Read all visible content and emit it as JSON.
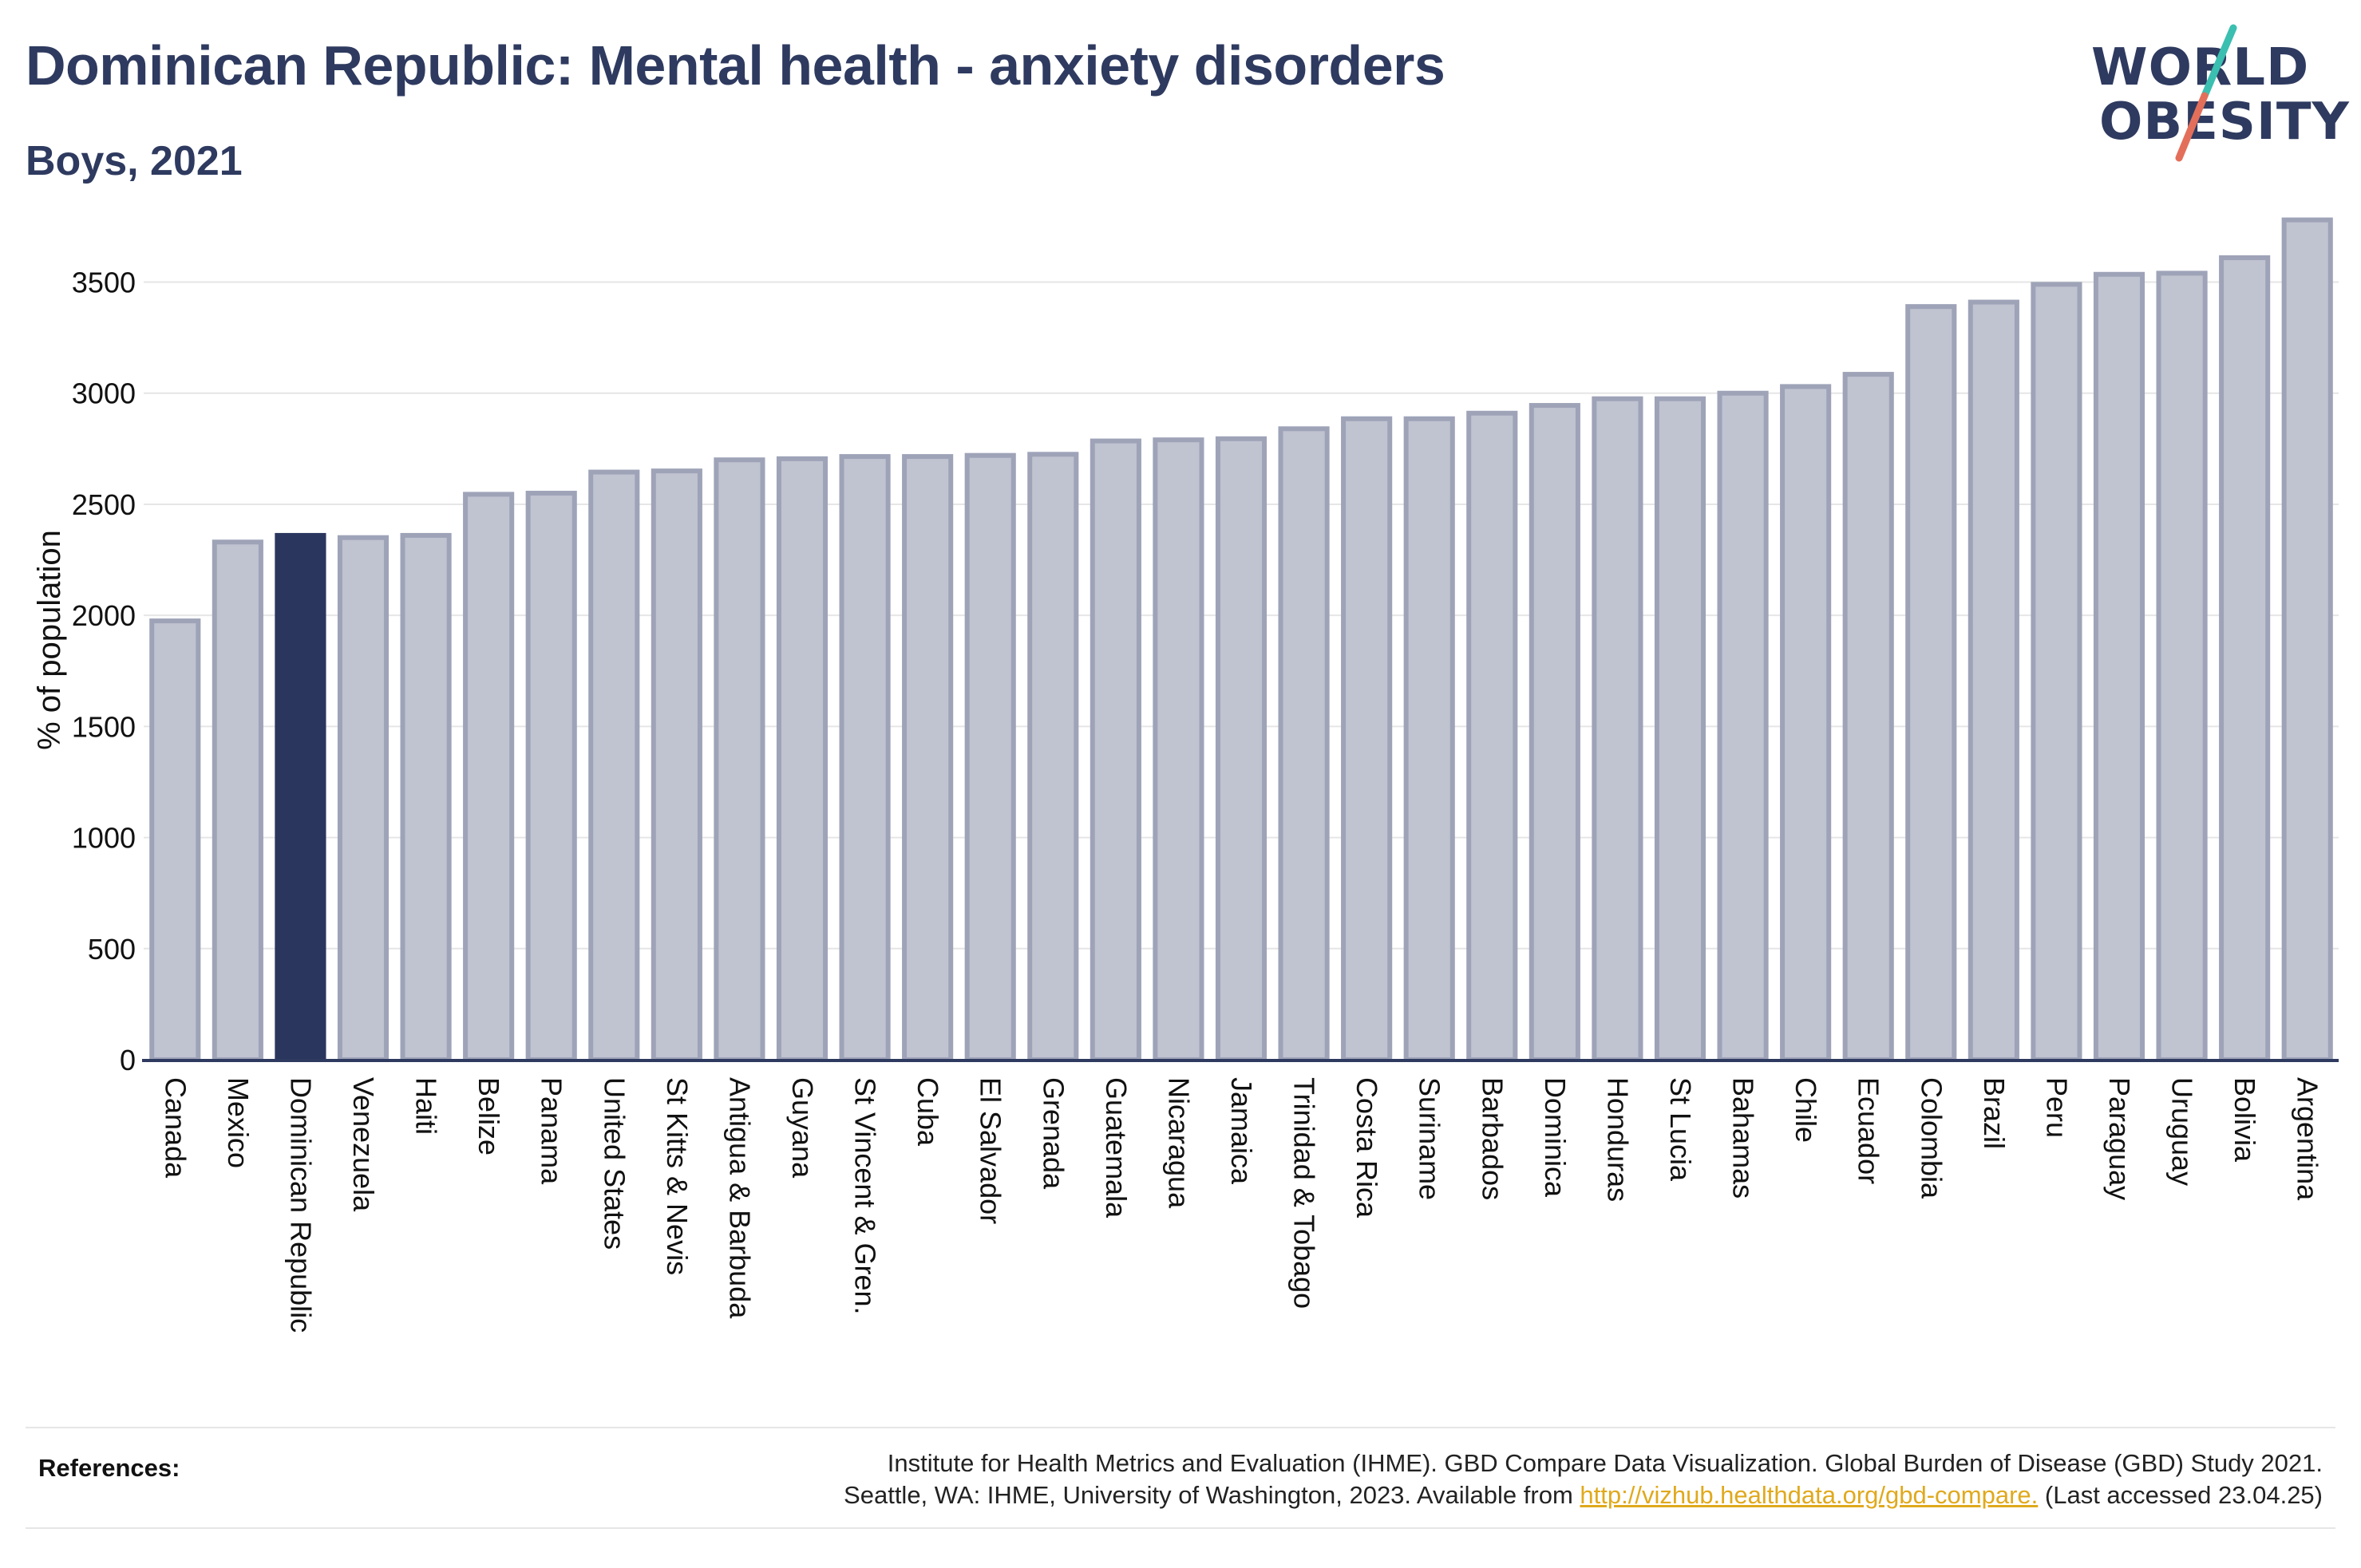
{
  "header": {
    "title": "Dominican Republic: Mental health - anxiety disorders",
    "subtitle": "Boys, 2021"
  },
  "logo": {
    "line1": "WORLD",
    "line2": "OBESITY",
    "colors": {
      "text": "#2e3a5f",
      "slash_top": "#3bbfb0",
      "slash_bottom": "#e36f5a"
    }
  },
  "colors": {
    "bar_default": "#c0c3d0",
    "bar_default_stroke": "#9ea3b8",
    "bar_highlight": "#2b365f",
    "axis": "#2e3a5f",
    "grid": "#e6e6e6"
  },
  "chart_data": {
    "type": "bar",
    "title": "Dominican Republic: Mental health - anxiety disorders",
    "subtitle": "Boys, 2021",
    "ylabel": "% of population",
    "ylim": [
      0,
      3800
    ],
    "yticks": [
      0,
      500,
      1000,
      1500,
      2000,
      2500,
      3000,
      3500
    ],
    "grid": true,
    "highlight": "Dominican Republic",
    "categories": [
      "Canada",
      "Mexico",
      "Dominican Republic",
      "Venezuela",
      "Haiti",
      "Belize",
      "Panama",
      "United States",
      "St Kitts & Nevis",
      "Antigua & Barbuda",
      "Guyana",
      "St Vincent & Gren.",
      "Cuba",
      "El Salvador",
      "Grenada",
      "Guatemala",
      "Nicaragua",
      "Jamaica",
      "Trinidad & Tobago",
      "Costa Rica",
      "Suriname",
      "Barbados",
      "Dominica",
      "Honduras",
      "St Lucia",
      "Bahamas",
      "Chile",
      "Ecuador",
      "Colombia",
      "Brazil",
      "Peru",
      "Paraguay",
      "Uruguay",
      "Bolivia",
      "Argentina"
    ],
    "values": [
      1975,
      2330,
      2360,
      2350,
      2360,
      2545,
      2550,
      2645,
      2650,
      2700,
      2705,
      2715,
      2715,
      2720,
      2725,
      2785,
      2790,
      2795,
      2840,
      2885,
      2885,
      2910,
      2945,
      2975,
      2975,
      3000,
      3030,
      3085,
      3390,
      3410,
      3490,
      3535,
      3540,
      3610,
      3780
    ]
  },
  "references": {
    "label": "References:",
    "line1": "Institute for Health Metrics and Evaluation (IHME). GBD Compare Data Visualization. Global Burden of Disease (GBD) Study 2021.",
    "line2_prefix": "Seattle, WA: IHME, University of Washington, 2023. Available from ",
    "link": "http://vizhub.healthdata.org/gbd-compare.",
    "line2_suffix": " (Last accessed 23.04.25)"
  }
}
